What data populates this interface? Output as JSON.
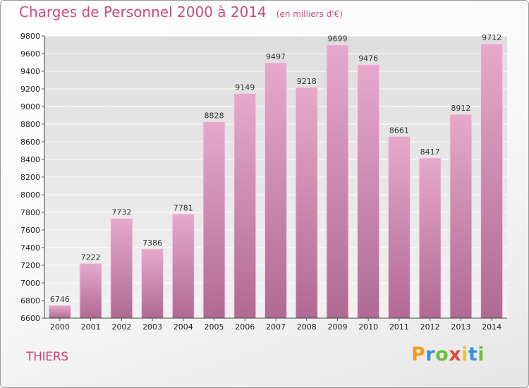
{
  "header": {
    "title": "Charges de Personnel 2000 à 2014",
    "subtitle": "(en milliers d'€)"
  },
  "location": "THIERS",
  "brand": {
    "letters": [
      "P",
      "r",
      "o",
      "x",
      "i",
      "t",
      "i"
    ],
    "colors": [
      "#f39a1c",
      "#3a8fd8",
      "#6cbf3a",
      "#e8483f",
      "#f0c020",
      "#3a8fd8",
      "#6cbf3a"
    ]
  },
  "chart_data": {
    "type": "bar",
    "title": "Charges de Personnel 2000 à 2014",
    "subtitle": "(en milliers d'€)",
    "categories": [
      "2000",
      "2001",
      "2002",
      "2003",
      "2004",
      "2005",
      "2006",
      "2007",
      "2008",
      "2009",
      "2010",
      "2011",
      "2012",
      "2013",
      "2014"
    ],
    "values": [
      6746,
      7222,
      7732,
      7386,
      7781,
      8828,
      9149,
      9497,
      9218,
      9699,
      9476,
      8661,
      8417,
      8912,
      9712
    ],
    "ylim": [
      6600,
      9800
    ],
    "yticks": [
      6600,
      6800,
      7000,
      7200,
      7400,
      7600,
      7800,
      8000,
      8200,
      8400,
      8600,
      8800,
      9000,
      9200,
      9400,
      9600,
      9800
    ],
    "grid": true,
    "bar_color": "#d98cb5"
  }
}
